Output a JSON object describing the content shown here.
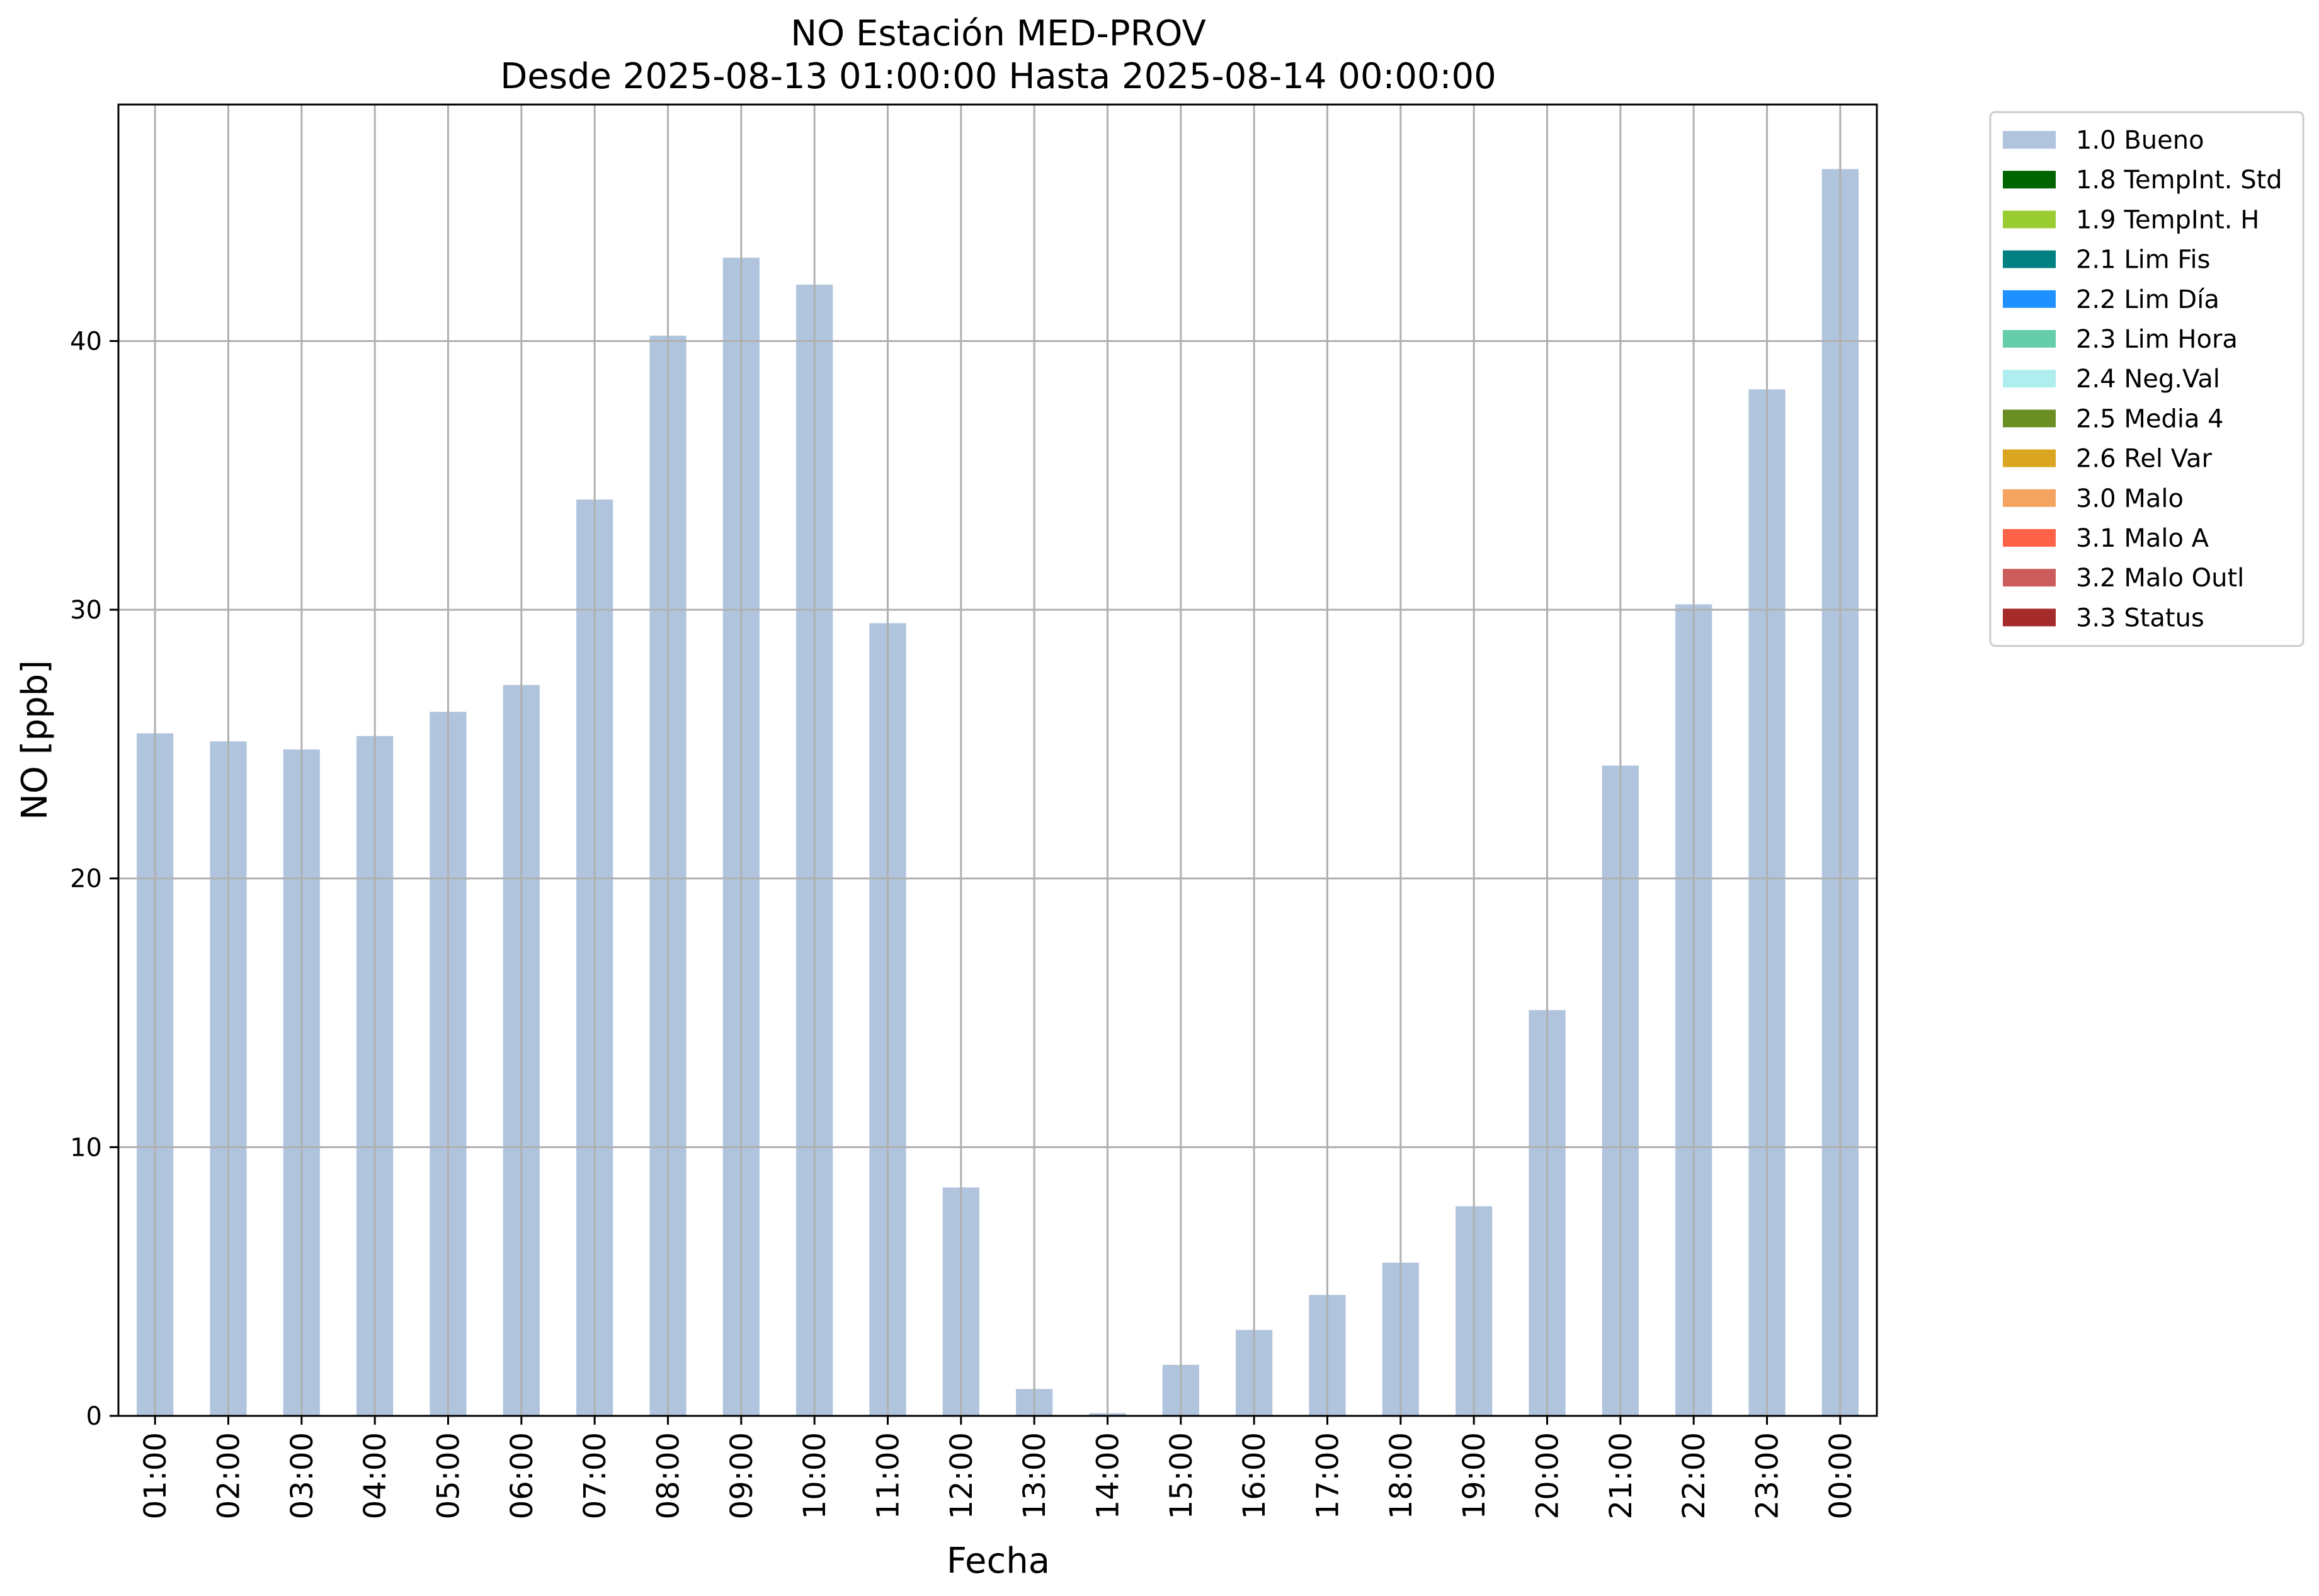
{
  "chart_data": {
    "type": "bar",
    "title": "NO Estación MED-PROV",
    "subtitle": "Desde 2025-08-13 01:00:00 Hasta 2025-08-14 00:00:00",
    "xlabel": "Fecha",
    "ylabel": "NO [ppb]",
    "categories": [
      "01:00",
      "02:00",
      "03:00",
      "04:00",
      "05:00",
      "06:00",
      "07:00",
      "08:00",
      "09:00",
      "10:00",
      "11:00",
      "12:00",
      "13:00",
      "14:00",
      "15:00",
      "16:00",
      "17:00",
      "18:00",
      "19:00",
      "20:00",
      "21:00",
      "22:00",
      "23:00",
      "00:00"
    ],
    "series": [
      {
        "name": "1.0 Bueno",
        "color": "#b0c4de",
        "values": [
          25.4,
          25.1,
          24.8,
          25.3,
          26.2,
          27.2,
          34.1,
          40.2,
          43.1,
          42.1,
          29.5,
          8.5,
          1.0,
          0.1,
          1.9,
          3.2,
          4.5,
          5.7,
          7.8,
          15.1,
          24.2,
          30.2,
          38.2,
          46.4
        ]
      }
    ],
    "ylim": [
      0,
      48.8
    ],
    "yticks": [
      0,
      10,
      20,
      30,
      40
    ],
    "grid": true,
    "legend_position": "outside-right-top",
    "legend": [
      {
        "label": "1.0 Bueno",
        "color": "#b0c4de"
      },
      {
        "label": "1.8 TempInt. Std",
        "color": "#006400"
      },
      {
        "label": "1.9 TempInt. H",
        "color": "#9acd32"
      },
      {
        "label": "2.1 Lim Fis",
        "color": "#008080"
      },
      {
        "label": "2.2 Lim Día",
        "color": "#1e90ff"
      },
      {
        "label": "2.3 Lim Hora",
        "color": "#66cdaa"
      },
      {
        "label": "2.4 Neg.Val",
        "color": "#afeeee"
      },
      {
        "label": "2.5 Media 4",
        "color": "#6b8e23"
      },
      {
        "label": "2.6 Rel Var",
        "color": "#daa520"
      },
      {
        "label": "3.0 Malo",
        "color": "#f4a460"
      },
      {
        "label": "3.1 Malo A",
        "color": "#ff6347"
      },
      {
        "label": "3.2 Malo Outl",
        "color": "#cd5c5c"
      },
      {
        "label": "3.3 Status",
        "color": "#a52a2a"
      }
    ]
  }
}
